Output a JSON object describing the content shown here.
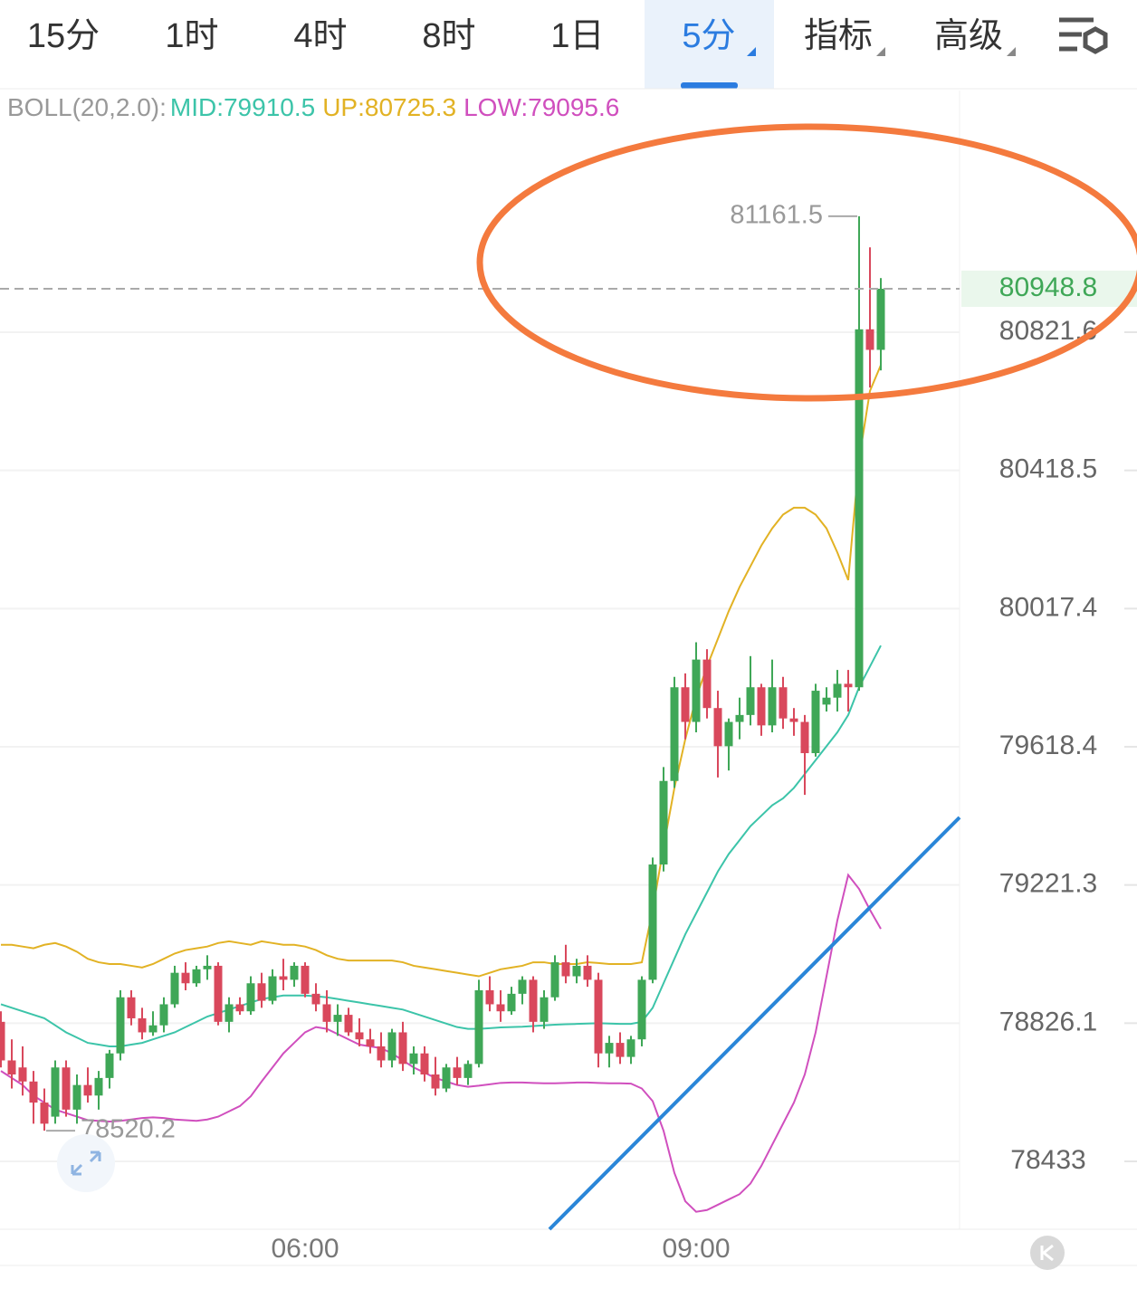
{
  "tabs": [
    "15分",
    "1时",
    "4时",
    "8时",
    "1日",
    "5分",
    "指标",
    "高级"
  ],
  "active_tab": 5,
  "chart_data": {
    "type": "candlestick",
    "indicator": "BOLL(20,2.0):",
    "log_scale": true,
    "grid": true,
    "up_color": "#3fa757",
    "down_color": "#d9485c",
    "ylim": [
      78240.6,
      81531.4
    ],
    "yticks": [
      80821.6,
      80418.5,
      80017.4,
      79618.4,
      79221.3,
      78826.1,
      78433.0
    ],
    "categories": [
      null,
      null,
      null,
      null,
      null,
      null,
      null,
      null,
      null,
      null,
      null,
      null,
      null,
      null,
      null,
      null,
      null,
      null,
      null,
      null,
      null,
      null,
      null,
      null,
      null,
      null,
      null,
      null,
      "06:00",
      null,
      null,
      null,
      null,
      null,
      null,
      null,
      null,
      null,
      null,
      null,
      null,
      null,
      null,
      null,
      null,
      null,
      null,
      null,
      null,
      null,
      null,
      null,
      null,
      null,
      null,
      null,
      null,
      null,
      null,
      null,
      null,
      null,
      null,
      null,
      "09:00",
      null,
      null,
      null,
      null,
      null,
      null,
      null,
      null,
      null,
      null,
      null,
      null,
      null,
      null,
      null,
      null,
      null
    ],
    "open": [
      78830,
      78720,
      78700,
      78660,
      78600,
      78560,
      78700,
      78580,
      78650,
      78620,
      78670,
      78740,
      78900,
      78840,
      78800,
      78820,
      78880,
      78970,
      78940,
      78980,
      78990,
      78830,
      78880,
      78860,
      78940,
      78890,
      78960,
      78950,
      78990,
      78910,
      78880,
      78830,
      78850,
      78800,
      78780,
      78760,
      78720,
      78800,
      78710,
      78740,
      78680,
      78640,
      78700,
      78670,
      78710,
      78920,
      78880,
      78860,
      78910,
      78950,
      78830,
      78900,
      79000,
      78960,
      78990,
      78950,
      78740,
      78770,
      78730,
      78780,
      78950,
      79280,
      79520,
      79790,
      79690,
      79870,
      79730,
      79620,
      79690,
      79710,
      79790,
      79680,
      79790,
      79700,
      79690,
      79600,
      79740,
      79760,
      79800,
      79790,
      80830,
      80770
    ],
    "high": [
      78860,
      78780,
      78760,
      78690,
      78640,
      78720,
      78720,
      78680,
      78700,
      78690,
      78750,
      78920,
      78920,
      78870,
      78860,
      78900,
      78990,
      79000,
      78990,
      79020,
      79000,
      78900,
      78900,
      78960,
      78970,
      78980,
      79010,
      79000,
      79000,
      78940,
      78920,
      78880,
      78870,
      78840,
      78810,
      78800,
      78810,
      78830,
      78760,
      78760,
      78730,
      78710,
      78730,
      78720,
      78950,
      78960,
      78920,
      78930,
      78960,
      78960,
      78920,
      79020,
      79050,
      79010,
      79020,
      78970,
      78790,
      78800,
      78790,
      78960,
      79300,
      79560,
      79820,
      79830,
      79920,
      79900,
      79780,
      79700,
      79760,
      79880,
      79800,
      79870,
      79820,
      79730,
      79710,
      79800,
      79790,
      79840,
      79840,
      81161.5,
      81070,
      80980
    ],
    "low": [
      78700,
      78640,
      78620,
      78540,
      78520.2,
      78540,
      78560,
      78540,
      78600,
      78580,
      78640,
      78720,
      78820,
      78780,
      78790,
      78800,
      78870,
      78920,
      78930,
      78950,
      78820,
      78800,
      78850,
      78850,
      78870,
      78880,
      78920,
      78930,
      78900,
      78860,
      78800,
      78790,
      78790,
      78760,
      78740,
      78700,
      78700,
      78690,
      78680,
      78660,
      78620,
      78630,
      78650,
      78650,
      78700,
      78860,
      78830,
      78850,
      78880,
      78800,
      78810,
      78890,
      78940,
      78940,
      78930,
      78700,
      78700,
      78710,
      78710,
      78760,
      78940,
      79260,
      79500,
      79640,
      79660,
      79700,
      79530,
      79550,
      79640,
      79680,
      79650,
      79660,
      79670,
      79650,
      79480,
      79590,
      79720,
      79720,
      79720,
      79780,
      80660,
      80710
    ],
    "close": [
      78720,
      78680,
      78660,
      78600,
      78540,
      78700,
      78580,
      78650,
      78620,
      78670,
      78740,
      78900,
      78840,
      78800,
      78820,
      78880,
      78970,
      78940,
      78980,
      78990,
      78830,
      78880,
      78860,
      78940,
      78890,
      78960,
      78950,
      78990,
      78910,
      78880,
      78830,
      78850,
      78800,
      78780,
      78760,
      78720,
      78800,
      78710,
      78740,
      78680,
      78640,
      78700,
      78670,
      78710,
      78920,
      78880,
      78860,
      78910,
      78950,
      78830,
      78900,
      79000,
      78960,
      78990,
      78950,
      78740,
      78770,
      78730,
      78780,
      78950,
      79280,
      79520,
      79790,
      79690,
      79870,
      79730,
      79620,
      79690,
      79710,
      79790,
      79680,
      79790,
      79700,
      79690,
      79600,
      79780,
      79760,
      79800,
      79790,
      80830,
      80770,
      80948.8
    ],
    "bands": [
      {
        "label": "MID:79910.5",
        "color": "#3cc4a9",
        "values": [
          78880,
          78870,
          78860,
          78850,
          78840,
          78820,
          78800,
          78785,
          78770,
          78765,
          78760,
          78760,
          78765,
          78770,
          78780,
          78790,
          78800,
          78815,
          78830,
          78845,
          78855,
          78865,
          78875,
          78885,
          78895,
          78900,
          78905,
          78905,
          78905,
          78903,
          78900,
          78895,
          78890,
          78885,
          78880,
          78875,
          78870,
          78865,
          78855,
          78845,
          78835,
          78825,
          78815,
          78810,
          78810,
          78812,
          78814,
          78815,
          78816,
          78818,
          78820,
          78822,
          78823,
          78824,
          78825,
          78826,
          78825,
          78824,
          78824,
          78830,
          78870,
          78940,
          79010,
          79080,
          79140,
          79200,
          79260,
          79310,
          79350,
          79390,
          79420,
          79450,
          79470,
          79500,
          79540,
          79580,
          79620,
          79660,
          79710,
          79790,
          79850,
          79910.5
        ]
      },
      {
        "label": "UP:80725.3",
        "color": "#e2b224",
        "values": [
          79050,
          79050,
          79045,
          79040,
          79050,
          79055,
          79045,
          79030,
          79010,
          79000,
          78995,
          78995,
          78990,
          78985,
          78995,
          79010,
          79025,
          79035,
          79040,
          79045,
          79055,
          79060,
          79055,
          79050,
          79060,
          79055,
          79050,
          79050,
          79045,
          79035,
          79020,
          79010,
          79005,
          79005,
          79005,
          79005,
          79005,
          79000,
          78990,
          78985,
          78980,
          78975,
          78970,
          78965,
          78960,
          78970,
          78980,
          78985,
          78990,
          79000,
          79000,
          78995,
          78995,
          78995,
          79000,
          78998,
          78995,
          78995,
          78995,
          79000,
          79150,
          79330,
          79500,
          79640,
          79760,
          79850,
          79930,
          80010,
          80080,
          80140,
          80200,
          80250,
          80290,
          80310,
          80310,
          80290,
          80250,
          80180,
          80100,
          80450,
          80650,
          80725.3
        ]
      },
      {
        "label": "LOW:79095.6",
        "color": "#d04fbe",
        "values": [
          78690,
          78670,
          78650,
          78620,
          78600,
          78580,
          78570,
          78560,
          78550,
          78548,
          78546,
          78548,
          78552,
          78556,
          78558,
          78556,
          78552,
          78550,
          78548,
          78552,
          78560,
          78575,
          78590,
          78618,
          78660,
          78700,
          78740,
          78770,
          78800,
          78815,
          78810,
          78795,
          78780,
          78765,
          78760,
          78755,
          78740,
          78720,
          78700,
          78685,
          78670,
          78660,
          78650,
          78645,
          78648,
          78652,
          78656,
          78657,
          78657,
          78656,
          78655,
          78655,
          78656,
          78657,
          78657,
          78656,
          78655,
          78655,
          78654,
          78640,
          78604,
          78520,
          78400,
          78320,
          78290,
          78295,
          78310,
          78325,
          78340,
          78370,
          78420,
          78480,
          78540,
          78600,
          78680,
          78800,
          78960,
          79120,
          79250,
          79210,
          79150,
          79095.6
        ]
      }
    ]
  }
}
